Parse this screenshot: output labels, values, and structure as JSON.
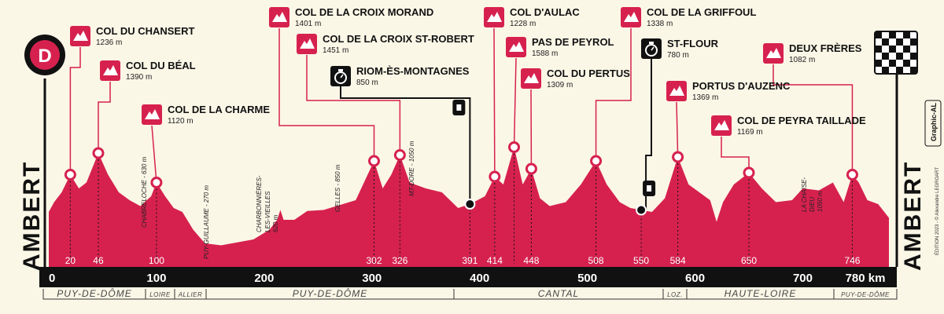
{
  "chart_data": {
    "type": "area",
    "title": "",
    "x_unit": "km",
    "xlim": [
      0,
      780
    ],
    "x_ticks": [
      "0",
      "100",
      "200",
      "300",
      "400",
      "500",
      "600",
      "700",
      "780 km"
    ],
    "profile": [
      [
        0,
        280
      ],
      [
        5,
        330
      ],
      [
        12,
        380
      ],
      [
        20,
        470
      ],
      [
        28,
        400
      ],
      [
        35,
        430
      ],
      [
        46,
        580
      ],
      [
        55,
        470
      ],
      [
        65,
        380
      ],
      [
        75,
        340
      ],
      [
        85,
        310
      ],
      [
        95,
        360
      ],
      [
        100,
        430
      ],
      [
        108,
        360
      ],
      [
        116,
        300
      ],
      [
        124,
        280
      ],
      [
        134,
        190
      ],
      [
        145,
        120
      ],
      [
        160,
        110
      ],
      [
        190,
        140
      ],
      [
        205,
        190
      ],
      [
        212,
        240
      ],
      [
        215,
        290
      ],
      [
        218,
        240
      ],
      [
        228,
        240
      ],
      [
        240,
        285
      ],
      [
        255,
        290
      ],
      [
        270,
        315
      ],
      [
        285,
        340
      ],
      [
        302,
        540
      ],
      [
        310,
        400
      ],
      [
        318,
        470
      ],
      [
        326,
        570
      ],
      [
        335,
        430
      ],
      [
        350,
        400
      ],
      [
        365,
        380
      ],
      [
        380,
        300
      ],
      [
        391,
        320
      ],
      [
        405,
        360
      ],
      [
        414,
        460
      ],
      [
        422,
        420
      ],
      [
        432,
        610
      ],
      [
        440,
        420
      ],
      [
        448,
        500
      ],
      [
        456,
        350
      ],
      [
        465,
        310
      ],
      [
        480,
        330
      ],
      [
        494,
        420
      ],
      [
        508,
        540
      ],
      [
        518,
        420
      ],
      [
        530,
        330
      ],
      [
        540,
        300
      ],
      [
        550,
        290
      ],
      [
        560,
        280
      ],
      [
        572,
        350
      ],
      [
        584,
        560
      ],
      [
        594,
        420
      ],
      [
        604,
        380
      ],
      [
        614,
        340
      ],
      [
        620,
        230
      ],
      [
        626,
        330
      ],
      [
        636,
        420
      ],
      [
        650,
        480
      ],
      [
        662,
        400
      ],
      [
        675,
        330
      ],
      [
        690,
        340
      ],
      [
        700,
        400
      ],
      [
        715,
        390
      ],
      [
        728,
        430
      ],
      [
        738,
        330
      ],
      [
        746,
        470
      ],
      [
        752,
        430
      ],
      [
        760,
        340
      ],
      [
        770,
        320
      ],
      [
        780,
        250
      ]
    ],
    "passes": [
      {
        "name": "COL DU CHANSERT",
        "alt": "1236 m",
        "km": "20"
      },
      {
        "name": "COL DU BÉAL",
        "alt": "1390 m",
        "km": "46"
      },
      {
        "name": "COL DE LA CHARME",
        "alt": "1120 m",
        "km": "100"
      },
      {
        "name": "COL DE  LA CROIX MORAND",
        "alt": "1401 m",
        "km": "302"
      },
      {
        "name": "COL DE  LA CROIX ST-ROBERT",
        "alt": "1451 m",
        "km": "326"
      },
      {
        "name": "COL D'AULAC",
        "alt": "1228 m",
        "km": "414"
      },
      {
        "name": "PAS DE PEYROL",
        "alt": "1588 m",
        "km": "432"
      },
      {
        "name": "COL DU PERTUS",
        "alt": "1309 m",
        "km": "448"
      },
      {
        "name": "COL DE LA GRIFFOUL",
        "alt": "1338 m",
        "km": "508"
      },
      {
        "name": "PORTUS D'AUZENC",
        "alt": "1369 m",
        "km": "584"
      },
      {
        "name": "COL DE PEYRA TAILLADE",
        "alt": "1169 m",
        "km": "650"
      },
      {
        "name": "DEUX FRÈRES",
        "alt": "1082 m",
        "km": "746"
      }
    ],
    "controls": [
      {
        "name": "RIOM-ÈS-MONTAGNES",
        "alt": "850 m",
        "km": "391"
      },
      {
        "name": "ST-FLOUR",
        "alt": "780 m",
        "km": "550"
      }
    ],
    "waypoints": [
      {
        "name": "CHABRELOCHE - 630 m"
      },
      {
        "name": "PUY-GUILLAUME - 270 m"
      },
      {
        "name": "CHARBONNIÈRES-"
      },
      {
        "name": "LES-VIEILLES"
      },
      {
        "name": "620 m"
      },
      {
        "name": "GELLES - 850 m"
      },
      {
        "name": "MT-DORE - 1050 m"
      },
      {
        "name": "LA CHAISE-"
      },
      {
        "name": "DIEU"
      },
      {
        "name": "1050 m"
      }
    ],
    "regions": [
      "PUY-DE-DÔME",
      "LOIRE",
      "ALLIER",
      "PUY-DE-DÔME",
      "CANTAL",
      "LOZ.",
      "HAUTE-LOIRE",
      "PUY-DE-DÔME"
    ]
  },
  "start_badge": "D",
  "start_town": "AMBERT",
  "finish_town": "AMBERT",
  "credit": "ÉDITION 2023 - © Alexandre LEGROART",
  "brand": "Graphic-AL",
  "colors": {
    "profile": "#d6214f",
    "line": "#d6214f",
    "bar": "#111111",
    "bg": "#fbf7e7"
  }
}
